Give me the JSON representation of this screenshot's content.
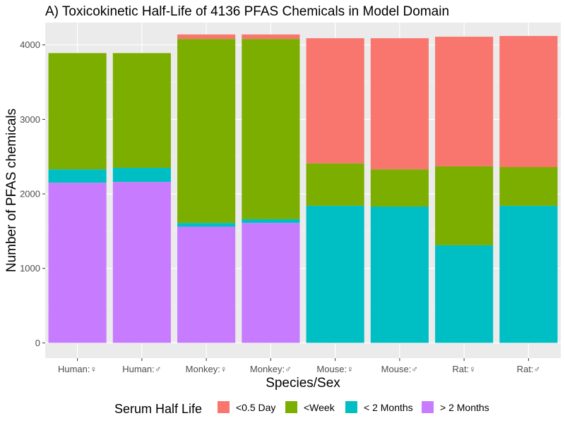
{
  "chart_data": {
    "type": "bar",
    "stacked": true,
    "title": "A) Toxicokinetic Half-Life of 4136 PFAS Chemicals in Model Domain",
    "xlabel": "Species/Sex",
    "ylabel": "Number of PFAS chemicals",
    "ylim": [
      0,
      4300
    ],
    "yticks": [
      0,
      1000,
      2000,
      3000,
      4000
    ],
    "grid": true,
    "legend": {
      "title": "Serum Half Life",
      "position": "bottom"
    },
    "categories": [
      "Human:♀",
      "Human:♂",
      "Monkey:♀",
      "Monkey:♂",
      "Mouse:♀",
      "Mouse:♂",
      "Rat:♀",
      "Rat:♂"
    ],
    "series": [
      {
        "name": "> 2 Months",
        "color": "#C77CFF",
        "values": [
          2150,
          2160,
          1560,
          1610,
          0,
          0,
          0,
          0
        ]
      },
      {
        "name": "< 2 Months",
        "color": "#00BFC4",
        "values": [
          180,
          190,
          50,
          50,
          1840,
          1830,
          1310,
          1840
        ]
      },
      {
        "name": "<Week",
        "color": "#7CAE00",
        "values": [
          1560,
          1540,
          2470,
          2420,
          570,
          500,
          1060,
          520
        ]
      },
      {
        "name": "<0.5 Day",
        "color": "#F8766D",
        "values": [
          0,
          0,
          60,
          60,
          1680,
          1760,
          1740,
          1760
        ]
      }
    ],
    "legend_order": [
      "<0.5 Day",
      "<Week",
      "< 2 Months",
      "> 2 Months"
    ]
  }
}
